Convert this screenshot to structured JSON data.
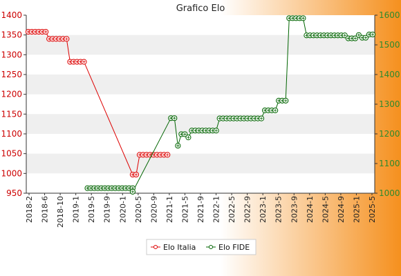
{
  "chart_data": {
    "type": "line",
    "title": "Grafico Elo",
    "colors": {
      "background_left": "#ffffff",
      "background_right": "#f5901e",
      "band": "#efefef",
      "left_axis": "#cc0000",
      "right_axis": "#2d8a2d",
      "series_italia": "#dd0000",
      "series_fide": "#006400"
    },
    "left_axis": {
      "min": 950,
      "max": 1400,
      "ticks": [
        950,
        1000,
        1050,
        1100,
        1150,
        1200,
        1250,
        1300,
        1350,
        1400
      ]
    },
    "right_axis": {
      "min": 1000,
      "max": 1600,
      "ticks": [
        1000,
        1100,
        1200,
        1300,
        1400,
        1500,
        1600
      ]
    },
    "legend": {
      "position": "bottom-center",
      "items": [
        "Elo Italia",
        "Elo FIDE"
      ]
    },
    "x_tick_labels": [
      "2018-2",
      "2018-6",
      "2018-10",
      "2019-1",
      "2019-5",
      "2019-9",
      "2020-1",
      "2020-5",
      "2020-9",
      "2021-1",
      "2021-5",
      "2021-9",
      "2022-1",
      "2022-5",
      "2022-9",
      "2023-1",
      "2023-5",
      "2023-9",
      "2024-1",
      "2024-5",
      "2024-9",
      "2025-1",
      "2025-5"
    ],
    "series": [
      {
        "name": "Elo Italia",
        "axis": "left",
        "points": [
          [
            0,
            1358
          ],
          [
            1,
            1358
          ],
          [
            2,
            1358
          ],
          [
            3,
            1358
          ],
          [
            4,
            1358
          ],
          [
            5,
            1358
          ],
          [
            6,
            1340
          ],
          [
            7,
            1340
          ],
          [
            8,
            1340
          ],
          [
            9,
            1340
          ],
          [
            10,
            1340
          ],
          [
            11,
            1340
          ],
          [
            12,
            1282
          ],
          [
            13,
            1282
          ],
          [
            14,
            1282
          ],
          [
            15,
            1282
          ],
          [
            16,
            1282
          ],
          [
            30,
            997
          ],
          [
            31,
            997
          ],
          [
            32,
            1047
          ],
          [
            33,
            1047
          ],
          [
            34,
            1047
          ],
          [
            35,
            1047
          ],
          [
            36,
            1047
          ],
          [
            37,
            1047
          ],
          [
            38,
            1047
          ],
          [
            39,
            1047
          ],
          [
            40,
            1047
          ]
        ]
      },
      {
        "name": "Elo FIDE",
        "axis": "right",
        "points": [
          [
            17,
            1017
          ],
          [
            18,
            1017
          ],
          [
            19,
            1017
          ],
          [
            20,
            1017
          ],
          [
            21,
            1017
          ],
          [
            22,
            1017
          ],
          [
            23,
            1017
          ],
          [
            24,
            1017
          ],
          [
            25,
            1017
          ],
          [
            26,
            1017
          ],
          [
            27,
            1017
          ],
          [
            28,
            1017
          ],
          [
            29,
            1017
          ],
          [
            30,
            1017
          ],
          [
            30,
            1005
          ],
          [
            41,
            1253
          ],
          [
            42,
            1253
          ],
          [
            43,
            1160
          ],
          [
            44,
            1199
          ],
          [
            45,
            1199
          ],
          [
            46,
            1188
          ],
          [
            47,
            1211
          ],
          [
            48,
            1211
          ],
          [
            49,
            1211
          ],
          [
            50,
            1211
          ],
          [
            51,
            1211
          ],
          [
            52,
            1211
          ],
          [
            53,
            1211
          ],
          [
            54,
            1211
          ],
          [
            55,
            1252
          ],
          [
            56,
            1252
          ],
          [
            57,
            1252
          ],
          [
            58,
            1252
          ],
          [
            59,
            1252
          ],
          [
            60,
            1252
          ],
          [
            61,
            1252
          ],
          [
            62,
            1252
          ],
          [
            63,
            1252
          ],
          [
            64,
            1252
          ],
          [
            65,
            1252
          ],
          [
            66,
            1252
          ],
          [
            67,
            1252
          ],
          [
            68,
            1279
          ],
          [
            69,
            1279
          ],
          [
            70,
            1279
          ],
          [
            71,
            1279
          ],
          [
            72,
            1312
          ],
          [
            73,
            1312
          ],
          [
            74,
            1312
          ],
          [
            75,
            1590
          ],
          [
            76,
            1590
          ],
          [
            77,
            1590
          ],
          [
            78,
            1590
          ],
          [
            79,
            1590
          ],
          [
            80,
            1532
          ],
          [
            81,
            1532
          ],
          [
            82,
            1532
          ],
          [
            83,
            1532
          ],
          [
            84,
            1532
          ],
          [
            85,
            1532
          ],
          [
            86,
            1532
          ],
          [
            87,
            1532
          ],
          [
            88,
            1532
          ],
          [
            89,
            1532
          ],
          [
            90,
            1532
          ],
          [
            91,
            1532
          ],
          [
            92,
            1522
          ],
          [
            93,
            1522
          ],
          [
            94,
            1522
          ],
          [
            95,
            1533
          ],
          [
            96,
            1524
          ],
          [
            97,
            1524
          ],
          [
            98,
            1535
          ],
          [
            99,
            1535
          ]
        ]
      }
    ]
  }
}
